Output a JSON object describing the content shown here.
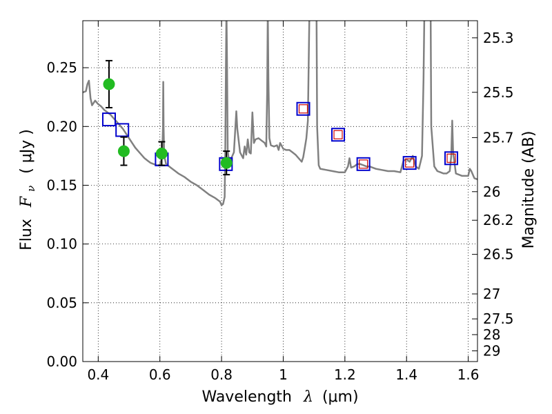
{
  "chart_data": {
    "type": "scatter",
    "xlabel": {
      "prefix": "Wavelength",
      "symbol": "λ",
      "unit": "(μm)"
    },
    "ylabel": {
      "prefix": "Flux",
      "symbol": "F",
      "subscript": "ν",
      "unit": "( μJy )"
    },
    "y2label": "Magnitude (AB)",
    "xlim": [
      0.35,
      1.63
    ],
    "ylim": [
      0.0,
      0.29
    ],
    "grid": true,
    "x_ticks": [
      {
        "value": 0.4,
        "label": "0.4"
      },
      {
        "value": 0.6,
        "label": "0.6"
      },
      {
        "value": 0.8,
        "label": "0.8"
      },
      {
        "value": 1.0,
        "label": "1"
      },
      {
        "value": 1.2,
        "label": "1.2"
      },
      {
        "value": 1.4,
        "label": "1.4"
      },
      {
        "value": 1.6,
        "label": "1.6"
      }
    ],
    "y_ticks": [
      {
        "value": 0.0,
        "label": "0.00"
      },
      {
        "value": 0.05,
        "label": "0.05"
      },
      {
        "value": 0.1,
        "label": "0.10"
      },
      {
        "value": 0.15,
        "label": "0.15"
      },
      {
        "value": 0.2,
        "label": "0.20"
      },
      {
        "value": 0.25,
        "label": "0.25"
      }
    ],
    "y2_ticks": [
      {
        "value": 25.3,
        "label": "25.3"
      },
      {
        "value": 25.5,
        "label": "25.5"
      },
      {
        "value": 25.7,
        "label": "25.7"
      },
      {
        "value": 26.0,
        "label": "26"
      },
      {
        "value": 26.2,
        "label": "26.2"
      },
      {
        "value": 26.5,
        "label": "26.5"
      },
      {
        "value": 27.0,
        "label": "27"
      },
      {
        "value": 27.5,
        "label": "27.5"
      },
      {
        "value": 28.0,
        "label": "28"
      },
      {
        "value": 29.0,
        "label": "29"
      }
    ],
    "series": [
      {
        "kind": "model_spectrum",
        "color": "#808080",
        "points": [
          [
            0.35,
            0.229
          ],
          [
            0.36,
            0.23
          ],
          [
            0.365,
            0.236
          ],
          [
            0.37,
            0.239
          ],
          [
            0.375,
            0.224
          ],
          [
            0.38,
            0.218
          ],
          [
            0.39,
            0.222
          ],
          [
            0.4,
            0.219
          ],
          [
            0.41,
            0.217
          ],
          [
            0.42,
            0.214
          ],
          [
            0.43,
            0.212
          ],
          [
            0.44,
            0.21
          ],
          [
            0.45,
            0.207
          ],
          [
            0.46,
            0.204
          ],
          [
            0.47,
            0.201
          ],
          [
            0.48,
            0.198
          ],
          [
            0.49,
            0.194
          ],
          [
            0.5,
            0.19
          ],
          [
            0.51,
            0.186
          ],
          [
            0.52,
            0.182
          ],
          [
            0.53,
            0.179
          ],
          [
            0.54,
            0.176
          ],
          [
            0.55,
            0.173
          ],
          [
            0.56,
            0.171
          ],
          [
            0.57,
            0.169
          ],
          [
            0.58,
            0.168
          ],
          [
            0.59,
            0.167
          ],
          [
            0.6,
            0.167
          ],
          [
            0.605,
            0.172
          ],
          [
            0.608,
            0.18
          ],
          [
            0.61,
            0.199
          ],
          [
            0.611,
            0.238
          ],
          [
            0.612,
            0.199
          ],
          [
            0.614,
            0.175
          ],
          [
            0.62,
            0.168
          ],
          [
            0.64,
            0.164
          ],
          [
            0.66,
            0.16
          ],
          [
            0.68,
            0.157
          ],
          [
            0.7,
            0.153
          ],
          [
            0.72,
            0.15
          ],
          [
            0.74,
            0.146
          ],
          [
            0.76,
            0.142
          ],
          [
            0.78,
            0.139
          ],
          [
            0.795,
            0.136
          ],
          [
            0.8,
            0.133
          ],
          [
            0.805,
            0.134
          ],
          [
            0.81,
            0.14
          ],
          [
            0.812,
            0.18
          ],
          [
            0.814,
            0.25
          ],
          [
            0.816,
            0.3
          ],
          [
            0.818,
            0.25
          ],
          [
            0.82,
            0.18
          ],
          [
            0.825,
            0.168
          ],
          [
            0.83,
            0.172
          ],
          [
            0.84,
            0.178
          ],
          [
            0.845,
            0.2
          ],
          [
            0.848,
            0.213
          ],
          [
            0.851,
            0.198
          ],
          [
            0.86,
            0.178
          ],
          [
            0.87,
            0.173
          ],
          [
            0.875,
            0.183
          ],
          [
            0.88,
            0.176
          ],
          [
            0.885,
            0.189
          ],
          [
            0.89,
            0.178
          ],
          [
            0.895,
            0.177
          ],
          [
            0.9,
            0.212
          ],
          [
            0.905,
            0.186
          ],
          [
            0.91,
            0.189
          ],
          [
            0.92,
            0.19
          ],
          [
            0.93,
            0.188
          ],
          [
            0.94,
            0.186
          ],
          [
            0.945,
            0.183
          ],
          [
            0.948,
            0.23
          ],
          [
            0.95,
            0.3
          ],
          [
            0.952,
            0.24
          ],
          [
            0.955,
            0.19
          ],
          [
            0.96,
            0.184
          ],
          [
            0.97,
            0.183
          ],
          [
            0.98,
            0.184
          ],
          [
            0.985,
            0.18
          ],
          [
            0.99,
            0.186
          ],
          [
            1.0,
            0.181
          ],
          [
            1.01,
            0.18
          ],
          [
            1.02,
            0.18
          ],
          [
            1.03,
            0.178
          ],
          [
            1.04,
            0.176
          ],
          [
            1.05,
            0.173
          ],
          [
            1.06,
            0.17
          ],
          [
            1.065,
            0.174
          ],
          [
            1.07,
            0.182
          ],
          [
            1.075,
            0.19
          ],
          [
            1.08,
            0.205
          ],
          [
            1.085,
            0.3
          ],
          [
            1.09,
            0.3
          ],
          [
            1.1,
            0.3
          ],
          [
            1.108,
            0.3
          ],
          [
            1.11,
            0.2
          ],
          [
            1.115,
            0.167
          ],
          [
            1.12,
            0.164
          ],
          [
            1.14,
            0.163
          ],
          [
            1.16,
            0.162
          ],
          [
            1.18,
            0.161
          ],
          [
            1.2,
            0.161
          ],
          [
            1.21,
            0.166
          ],
          [
            1.215,
            0.173
          ],
          [
            1.22,
            0.165
          ],
          [
            1.23,
            0.166
          ],
          [
            1.24,
            0.168
          ],
          [
            1.25,
            0.168
          ],
          [
            1.26,
            0.167
          ],
          [
            1.27,
            0.166
          ],
          [
            1.28,
            0.166
          ],
          [
            1.29,
            0.165
          ],
          [
            1.3,
            0.164
          ],
          [
            1.32,
            0.163
          ],
          [
            1.34,
            0.162
          ],
          [
            1.36,
            0.162
          ],
          [
            1.38,
            0.161
          ],
          [
            1.39,
            0.171
          ],
          [
            1.4,
            0.172
          ],
          [
            1.41,
            0.17
          ],
          [
            1.42,
            0.175
          ],
          [
            1.43,
            0.166
          ],
          [
            1.44,
            0.164
          ],
          [
            1.45,
            0.175
          ],
          [
            1.455,
            0.24
          ],
          [
            1.458,
            0.3
          ],
          [
            1.47,
            0.3
          ],
          [
            1.478,
            0.3
          ],
          [
            1.48,
            0.2
          ],
          [
            1.49,
            0.166
          ],
          [
            1.5,
            0.162
          ],
          [
            1.51,
            0.161
          ],
          [
            1.52,
            0.16
          ],
          [
            1.53,
            0.16
          ],
          [
            1.54,
            0.162
          ],
          [
            1.545,
            0.175
          ],
          [
            1.548,
            0.205
          ],
          [
            1.551,
            0.178
          ],
          [
            1.56,
            0.16
          ],
          [
            1.58,
            0.158
          ],
          [
            1.59,
            0.158
          ],
          [
            1.6,
            0.158
          ],
          [
            1.605,
            0.164
          ],
          [
            1.61,
            0.162
          ],
          [
            1.62,
            0.156
          ],
          [
            1.63,
            0.155
          ]
        ]
      },
      {
        "kind": "model_photometry",
        "edge_color": "#0000cc",
        "points": [
          [
            0.435,
            0.206
          ],
          [
            0.478,
            0.197
          ],
          [
            0.606,
            0.172
          ],
          [
            0.814,
            0.168
          ],
          [
            1.065,
            0.215
          ],
          [
            1.178,
            0.193
          ],
          [
            1.26,
            0.168
          ],
          [
            1.41,
            0.169
          ],
          [
            1.545,
            0.173
          ]
        ]
      },
      {
        "kind": "observed_nir",
        "edge_color": "#cc0000",
        "points": [
          [
            1.065,
            0.215
          ],
          [
            1.178,
            0.193
          ],
          [
            1.26,
            0.168
          ],
          [
            1.41,
            0.169
          ],
          [
            1.545,
            0.173
          ]
        ]
      },
      {
        "kind": "observed_optical",
        "color": "#22bb22",
        "points": [
          {
            "x": 0.435,
            "y": 0.236,
            "err": 0.02
          },
          {
            "x": 0.483,
            "y": 0.179,
            "err": 0.012
          },
          {
            "x": 0.606,
            "y": 0.177,
            "err": 0.01
          },
          {
            "x": 0.816,
            "y": 0.169,
            "err": 0.01
          }
        ]
      }
    ]
  }
}
